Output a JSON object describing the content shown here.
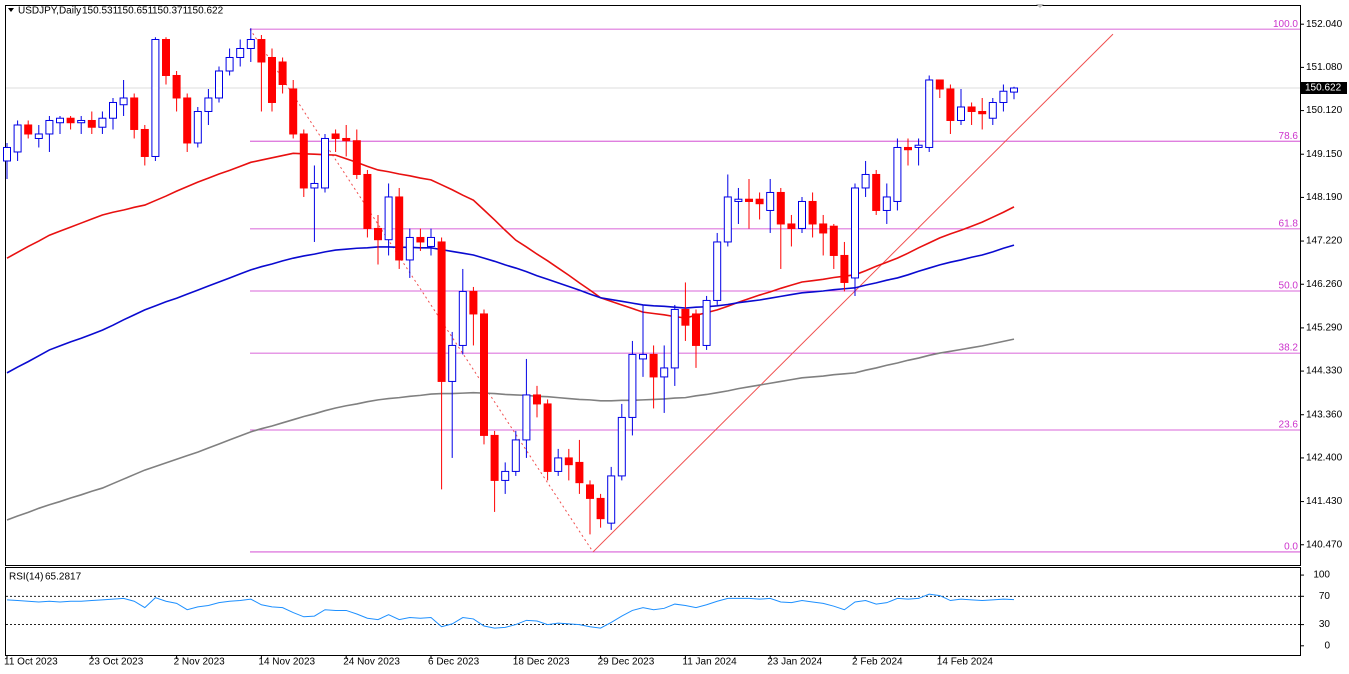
{
  "chart_data": {
    "type": "candlestick",
    "symbol": "USDJPY,Daily",
    "categories": [
      "11 Oct 2023",
      null,
      null,
      null,
      null,
      null,
      null,
      null,
      "23 Oct 2023",
      null,
      null,
      null,
      null,
      null,
      null,
      null,
      "2 Nov 2023",
      null,
      null,
      null,
      null,
      null,
      null,
      null,
      "14 Nov 2023",
      null,
      null,
      null,
      null,
      null,
      null,
      null,
      "24 Nov 2023",
      null,
      null,
      null,
      null,
      null,
      null,
      null,
      "6 Dec 2023",
      null,
      null,
      null,
      null,
      null,
      null,
      null,
      "18 Dec 2023",
      null,
      null,
      null,
      null,
      null,
      null,
      null,
      "29 Dec 2023",
      null,
      null,
      null,
      null,
      null,
      null,
      null,
      "11 Jan 2024",
      null,
      null,
      null,
      null,
      null,
      null,
      null,
      "23 Jan 2024",
      null,
      null,
      null,
      null,
      null,
      null,
      null,
      "2 Feb 2024",
      null,
      null,
      null,
      null,
      null,
      null,
      null,
      "14 Feb 2024",
      null,
      null,
      null,
      null,
      null,
      null,
      null
    ],
    "open": [
      149.0,
      149.2,
      149.8,
      149.5,
      149.6,
      149.85,
      149.95,
      149.85,
      149.9,
      149.75,
      149.95,
      150.25,
      150.4,
      149.7,
      149.1,
      151.7,
      150.9,
      150.4,
      149.4,
      150.1,
      150.4,
      151.0,
      151.3,
      151.5,
      151.7,
      151.3,
      151.2,
      150.6,
      149.6,
      148.4,
      148.4,
      149.6,
      149.5,
      149.45,
      148.7,
      147.5,
      147.25,
      148.2,
      146.8,
      147.3,
      147.1,
      147.2,
      144.1,
      144.9,
      146.1,
      145.6,
      142.9,
      141.9,
      142.1,
      142.8,
      143.8,
      143.6,
      142.1,
      142.4,
      142.3,
      141.8,
      141.5,
      140.95,
      142.0,
      143.3,
      144.6,
      144.7,
      144.2,
      144.4,
      145.7,
      145.6,
      144.9,
      145.9,
      147.2,
      148.1,
      148.15,
      148.15,
      147.9,
      148.3,
      147.6,
      147.5,
      148.1,
      147.6,
      147.55,
      146.9,
      146.4,
      148.4,
      148.7,
      147.9,
      148.1,
      149.3,
      149.3,
      149.3,
      150.8,
      150.6,
      149.9,
      150.2,
      150.1,
      149.95,
      150.3,
      150.531
    ],
    "high": [
      149.4,
      149.9,
      149.9,
      149.8,
      150.0,
      150.0,
      150.0,
      150.0,
      150.1,
      150.1,
      150.4,
      150.8,
      150.5,
      149.8,
      151.75,
      151.75,
      151.0,
      150.5,
      150.2,
      150.6,
      151.1,
      151.5,
      151.7,
      151.95,
      151.8,
      151.5,
      151.3,
      150.8,
      149.7,
      148.9,
      149.6,
      149.7,
      149.8,
      149.7,
      148.8,
      147.8,
      148.5,
      148.4,
      147.5,
      147.5,
      147.5,
      147.3,
      145.2,
      146.6,
      146.2,
      145.7,
      143.0,
      142.3,
      143.0,
      144.6,
      144.0,
      143.7,
      142.6,
      142.6,
      142.8,
      141.9,
      141.6,
      142.2,
      143.6,
      145.0,
      145.8,
      144.9,
      144.9,
      145.8,
      146.3,
      145.7,
      146.0,
      147.4,
      148.7,
      148.4,
      148.6,
      148.3,
      148.6,
      148.4,
      147.8,
      148.2,
      148.3,
      147.8,
      147.6,
      147.2,
      148.5,
      149.0,
      148.8,
      148.5,
      149.5,
      149.5,
      149.5,
      150.9,
      150.8,
      150.7,
      150.6,
      150.3,
      150.4,
      150.4,
      150.7,
      150.651
    ],
    "low": [
      148.6,
      149.0,
      149.5,
      149.3,
      149.2,
      149.6,
      149.7,
      149.6,
      149.6,
      149.6,
      149.7,
      150.0,
      149.5,
      148.9,
      149.0,
      150.7,
      150.1,
      149.2,
      149.3,
      149.8,
      150.3,
      150.9,
      151.1,
      151.2,
      150.1,
      150.1,
      150.5,
      149.5,
      148.2,
      147.2,
      148.3,
      149.2,
      149.1,
      148.6,
      147.3,
      146.7,
      146.9,
      146.6,
      146.4,
      147.0,
      146.9,
      141.7,
      142.4,
      144.7,
      144.9,
      142.7,
      141.2,
      141.6,
      142.0,
      142.4,
      143.3,
      141.9,
      142.0,
      141.9,
      141.6,
      140.7,
      140.85,
      140.8,
      141.9,
      142.9,
      144.2,
      143.5,
      143.4,
      144.0,
      145.0,
      144.4,
      144.8,
      145.8,
      147.1,
      147.6,
      147.5,
      147.7,
      147.4,
      146.6,
      147.1,
      147.4,
      147.3,
      146.9,
      146.6,
      146.1,
      146.0,
      148.2,
      147.8,
      147.6,
      147.9,
      148.9,
      148.9,
      149.2,
      150.4,
      149.6,
      149.8,
      149.8,
      149.7,
      149.8,
      150.1,
      150.371
    ],
    "close": [
      149.3,
      149.8,
      149.6,
      149.6,
      149.9,
      149.95,
      149.85,
      149.9,
      149.75,
      149.95,
      150.3,
      150.4,
      149.7,
      149.1,
      151.7,
      150.9,
      150.4,
      149.4,
      150.1,
      150.4,
      151.0,
      151.3,
      151.5,
      151.7,
      151.2,
      150.3,
      150.7,
      149.6,
      148.4,
      148.5,
      149.5,
      149.5,
      149.45,
      148.7,
      147.5,
      147.25,
      148.2,
      146.8,
      147.3,
      147.2,
      147.3,
      144.1,
      144.9,
      146.1,
      145.6,
      142.9,
      141.9,
      142.1,
      142.8,
      143.8,
      143.6,
      142.1,
      142.4,
      142.25,
      141.85,
      141.5,
      141.05,
      142.0,
      143.3,
      144.7,
      144.7,
      144.2,
      144.4,
      145.7,
      145.35,
      144.9,
      145.9,
      147.2,
      148.2,
      148.15,
      148.1,
      148.05,
      148.3,
      147.6,
      147.5,
      148.1,
      147.6,
      147.4,
      146.9,
      146.3,
      148.4,
      148.7,
      147.9,
      148.2,
      149.3,
      149.25,
      149.35,
      150.8,
      150.6,
      149.9,
      150.2,
      150.1,
      150.05,
      150.3,
      150.55,
      150.622
    ],
    "bull_color": "#0000e6",
    "bear_color": "#ff0000",
    "series": [
      {
        "color": "#e81010",
        "values": [
          146.84,
          146.97,
          147.1,
          147.22,
          147.35,
          147.44,
          147.53,
          147.62,
          147.71,
          147.8,
          147.86,
          147.91,
          147.97,
          148.02,
          148.12,
          148.22,
          148.33,
          148.43,
          148.53,
          148.62,
          148.71,
          148.79,
          148.88,
          148.97,
          149.02,
          149.07,
          149.12,
          149.17,
          149.16,
          149.15,
          149.14,
          149.13,
          149.05,
          148.97,
          148.88,
          148.8,
          148.76,
          148.71,
          148.67,
          148.62,
          148.58,
          148.47,
          148.36,
          148.24,
          148.13,
          147.91,
          147.69,
          147.46,
          147.24,
          147.09,
          146.93,
          146.78,
          146.62,
          146.46,
          146.29,
          146.13,
          145.96,
          145.88,
          145.8,
          145.72,
          145.64,
          145.61,
          145.58,
          145.54,
          145.51,
          145.57,
          145.63,
          145.69,
          145.77,
          145.86,
          145.94,
          146.02,
          146.09,
          146.17,
          146.24,
          146.31,
          146.34,
          146.37,
          146.41,
          146.44,
          146.47,
          146.56,
          146.66,
          146.75,
          146.84,
          146.95,
          147.07,
          147.18,
          147.29,
          147.38,
          147.46,
          147.55,
          147.64,
          147.75,
          147.86,
          147.98
        ]
      },
      {
        "color": "#0a0ad0",
        "values": [
          144.29,
          144.42,
          144.54,
          144.67,
          144.8,
          144.89,
          144.98,
          145.06,
          145.15,
          145.24,
          145.35,
          145.47,
          145.58,
          145.69,
          145.78,
          145.87,
          145.95,
          146.04,
          146.13,
          146.22,
          146.31,
          146.4,
          146.49,
          146.58,
          146.65,
          146.71,
          146.78,
          146.84,
          146.89,
          146.93,
          146.98,
          147.02,
          147.04,
          147.06,
          147.07,
          147.09,
          147.09,
          147.08,
          147.08,
          147.07,
          147.07,
          147.03,
          146.99,
          146.95,
          146.91,
          146.84,
          146.77,
          146.69,
          146.62,
          146.54,
          146.45,
          146.37,
          146.29,
          146.21,
          146.13,
          146.04,
          145.96,
          145.92,
          145.88,
          145.84,
          145.8,
          145.78,
          145.77,
          145.75,
          145.73,
          145.75,
          145.76,
          145.78,
          145.81,
          145.85,
          145.88,
          145.91,
          145.95,
          145.99,
          146.03,
          146.07,
          146.09,
          146.11,
          146.14,
          146.16,
          146.18,
          146.24,
          146.29,
          146.35,
          146.4,
          146.47,
          146.55,
          146.62,
          146.69,
          146.75,
          146.8,
          146.86,
          146.91,
          146.98,
          147.06,
          147.13
        ]
      },
      {
        "color": "#808080",
        "values": [
          141.02,
          141.11,
          141.19,
          141.28,
          141.36,
          141.43,
          141.51,
          141.58,
          141.66,
          141.73,
          141.83,
          141.93,
          142.03,
          142.13,
          142.21,
          142.29,
          142.37,
          142.45,
          142.53,
          142.62,
          142.71,
          142.8,
          142.89,
          142.98,
          143.05,
          143.11,
          143.18,
          143.25,
          143.32,
          143.38,
          143.45,
          143.51,
          143.56,
          143.6,
          143.65,
          143.69,
          143.72,
          143.74,
          143.77,
          143.79,
          143.82,
          143.83,
          143.83,
          143.84,
          143.85,
          143.84,
          143.83,
          143.81,
          143.8,
          143.79,
          143.77,
          143.76,
          143.74,
          143.72,
          143.7,
          143.69,
          143.67,
          143.67,
          143.68,
          143.68,
          143.69,
          143.7,
          143.71,
          143.73,
          143.74,
          143.78,
          143.81,
          143.85,
          143.89,
          143.94,
          143.98,
          144.02,
          144.06,
          144.1,
          144.14,
          144.18,
          144.2,
          144.22,
          144.25,
          144.27,
          144.29,
          144.35,
          144.4,
          144.46,
          144.51,
          144.57,
          144.62,
          144.68,
          144.73,
          144.77,
          144.81,
          144.85,
          144.89,
          144.94,
          144.99,
          145.04
        ]
      }
    ],
    "fibonacci": {
      "color": "#cc33cc",
      "levels": [
        {
          "label": "100.0",
          "price": 151.93
        },
        {
          "label": "78.6",
          "price": 149.44
        },
        {
          "label": "61.8",
          "price": 147.49
        },
        {
          "label": "50.0",
          "price": 146.11
        },
        {
          "label": "38.2",
          "price": 144.73
        },
        {
          "label": "23.6",
          "price": 143.02
        },
        {
          "label": "0.0",
          "price": 140.31
        }
      ]
    },
    "trendline": {
      "color": "#f05050",
      "values": [
        140.31,
        151.82
      ]
    },
    "ylim": [
      140.02,
      152.4
    ],
    "yticks": [
      {
        "value": 152.04,
        "label": "152.040"
      },
      {
        "value": 151.08,
        "label": "151.080"
      },
      {
        "value": 150.12,
        "label": "150.120"
      },
      {
        "value": 149.15,
        "label": "149.150"
      },
      {
        "value": 148.19,
        "label": "148.190"
      },
      {
        "value": 147.22,
        "label": "147.220"
      },
      {
        "value": 146.26,
        "label": "146.260"
      },
      {
        "value": 145.29,
        "label": "145.290"
      },
      {
        "value": 144.33,
        "label": "144.330"
      },
      {
        "value": 143.36,
        "label": "143.360"
      },
      {
        "value": 142.4,
        "label": "142.400"
      },
      {
        "value": 141.43,
        "label": "141.430"
      },
      {
        "value": 140.47,
        "label": "140.470"
      }
    ],
    "rsi": {
      "label": "RSI(14)",
      "color": "#1e90ff",
      "ylim": [
        -13,
        110
      ],
      "yticks": [
        100,
        70,
        30,
        0
      ],
      "levels": [
        70,
        30
      ],
      "values": [
        65,
        64,
        63,
        62,
        63,
        62,
        63,
        63,
        64,
        65,
        66,
        67,
        63,
        54,
        68,
        63,
        60,
        51,
        55,
        57,
        61,
        63,
        64,
        66,
        58,
        55,
        54,
        47,
        41,
        42,
        51,
        50,
        50,
        45,
        39,
        37,
        44,
        37,
        40,
        39,
        40,
        27,
        31,
        40,
        38,
        28,
        25,
        26,
        30,
        36,
        35,
        30,
        32,
        31,
        30,
        27,
        25,
        33,
        42,
        50,
        54,
        51,
        53,
        59,
        57,
        54,
        58,
        63,
        67,
        67,
        67,
        66,
        67,
        62,
        61,
        64,
        62,
        60,
        56,
        51,
        62,
        64,
        59,
        61,
        67,
        66,
        67,
        73,
        71,
        64,
        66,
        65,
        64,
        65,
        66,
        65.2817
      ]
    }
  }
}
